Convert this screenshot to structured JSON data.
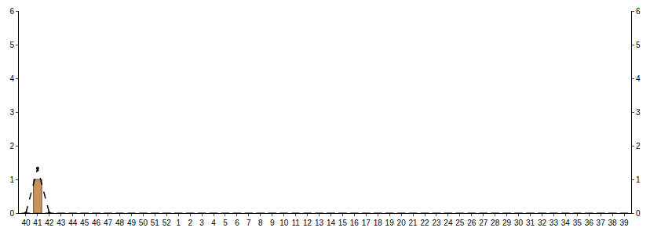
{
  "chart_data": {
    "type": "bar",
    "categories": [
      "40",
      "41",
      "42",
      "43",
      "44",
      "45",
      "46",
      "47",
      "48",
      "49",
      "50",
      "51",
      "52",
      "1",
      "2",
      "3",
      "4",
      "5",
      "6",
      "7",
      "8",
      "9",
      "10",
      "11",
      "12",
      "13",
      "14",
      "15",
      "16",
      "17",
      "18",
      "19",
      "20",
      "21",
      "22",
      "23",
      "24",
      "25",
      "26",
      "27",
      "28",
      "29",
      "30",
      "31",
      "32",
      "33",
      "34",
      "35",
      "36",
      "37",
      "38",
      "39"
    ],
    "series": [
      {
        "type": "bar",
        "color": "#c8945e",
        "values": [
          0,
          1,
          0,
          0,
          0,
          0,
          0,
          0,
          0,
          0,
          0,
          0,
          0,
          0,
          0,
          0,
          0,
          0,
          0,
          0,
          0,
          0,
          0,
          0,
          0,
          0,
          0,
          0,
          0,
          0,
          0,
          0,
          0,
          0,
          0,
          0,
          0,
          0,
          0,
          0,
          0,
          0,
          0,
          0,
          0,
          0,
          0,
          0,
          0,
          0,
          0,
          0
        ]
      },
      {
        "type": "line",
        "color": "#000000",
        "line_style": "dash",
        "marker": "circle",
        "values": [
          0,
          1.33,
          0,
          null,
          null,
          null,
          null,
          null,
          null,
          null,
          null,
          null,
          null,
          null,
          null,
          null,
          null,
          null,
          null,
          null,
          null,
          null,
          null,
          null,
          null,
          null,
          null,
          null,
          null,
          null,
          null,
          null,
          null,
          null,
          null,
          null,
          null,
          null,
          null,
          null,
          null,
          null,
          null,
          null,
          null,
          null,
          null,
          null,
          null,
          null,
          null,
          null
        ]
      }
    ],
    "ylim": [
      0,
      6
    ],
    "yticks": [
      0,
      1,
      2,
      3,
      4,
      5,
      6
    ],
    "grid": false
  }
}
